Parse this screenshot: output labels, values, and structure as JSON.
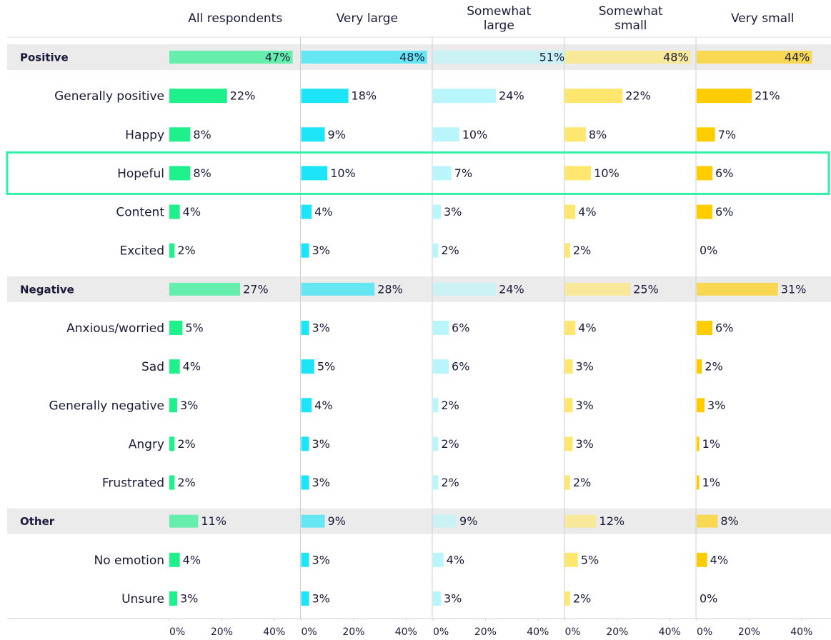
{
  "chart_data": {
    "type": "bar",
    "orientation": "horizontal",
    "layout": "small-multiples",
    "categories": [
      "Positive",
      "Generally positive",
      "Happy",
      "Hopeful",
      "Content",
      "Excited",
      "Negative",
      "Anxious/worried",
      "Sad",
      "Generally negative",
      "Angry",
      "Frustrated",
      "Other",
      "No emotion",
      "Unsure"
    ],
    "bold_rows": [
      0,
      6,
      12
    ],
    "highlight_row": 3,
    "series": [
      {
        "name": "All respondents",
        "color": "#1ef08c",
        "values": [
          47,
          22,
          8,
          8,
          4,
          2,
          27,
          5,
          4,
          3,
          2,
          2,
          11,
          4,
          3
        ],
        "value_labels": [
          "47%",
          "22%",
          "8%",
          "8%",
          "4%",
          "2%",
          "27%",
          "5%",
          "4%",
          "3%",
          "2%",
          "2%",
          "11%",
          "4%",
          "3%"
        ]
      },
      {
        "name": "Very large",
        "color": "#1ee4f8",
        "values": [
          48,
          18,
          9,
          10,
          4,
          3,
          28,
          3,
          5,
          4,
          3,
          3,
          9,
          3,
          3
        ],
        "value_labels": [
          "48%",
          "18%",
          "9%",
          "10%",
          "4%",
          "3%",
          "28%",
          "3%",
          "5%",
          "4%",
          "3%",
          "3%",
          "9%",
          "3%",
          "3%"
        ]
      },
      {
        "name": "Somewhat large",
        "color": "#b9f6fb",
        "values": [
          51,
          24,
          10,
          7,
          3,
          2,
          24,
          6,
          6,
          2,
          2,
          2,
          9,
          4,
          3
        ],
        "value_labels": [
          "51%",
          "24%",
          "10%",
          "7%",
          "3%",
          "2%",
          "24%",
          "6%",
          "6%",
          "2%",
          "2%",
          "2%",
          "9%",
          "4%",
          "3%"
        ]
      },
      {
        "name": "Somewhat small",
        "color": "#ffe66e",
        "values": [
          48,
          22,
          8,
          10,
          4,
          2,
          25,
          4,
          3,
          3,
          3,
          2,
          12,
          5,
          2
        ],
        "value_labels": [
          "48%",
          "22%",
          "8%",
          "10%",
          "4%",
          "2%",
          "25%",
          "4%",
          "3%",
          "3%",
          "3%",
          "2%",
          "12%",
          "5%",
          "2%"
        ]
      },
      {
        "name": "Very small",
        "color": "#ffcc00",
        "values": [
          44,
          21,
          7,
          6,
          6,
          0,
          31,
          6,
          2,
          3,
          1,
          1,
          8,
          4,
          0
        ],
        "value_labels": [
          "44%",
          "21%",
          "7%",
          "6%",
          "6%",
          "0%",
          "31%",
          "6%",
          "2%",
          "3%",
          "1%",
          "1%",
          "8%",
          "4%",
          "0%"
        ]
      }
    ],
    "xlim": [
      0,
      50
    ],
    "xticks": [
      {
        "value": 0,
        "label": "0%"
      },
      {
        "value": 20,
        "label": "20%"
      },
      {
        "value": 40,
        "label": "40%"
      }
    ]
  }
}
